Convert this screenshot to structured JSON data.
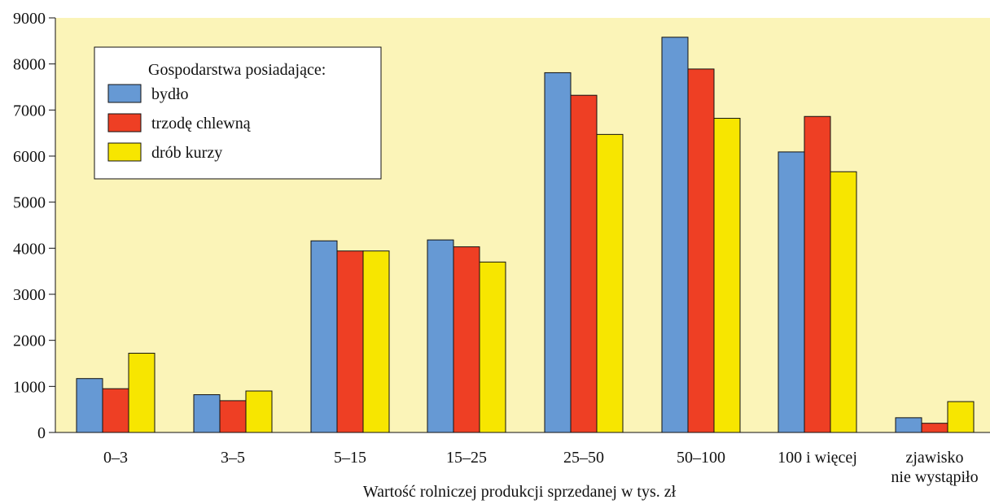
{
  "chart_data": {
    "type": "bar",
    "title": "",
    "xlabel": "Wartość rolniczej produkcji sprzedanej w  tys. zł",
    "ylabel": "",
    "ylim": [
      0,
      9000
    ],
    "yticks": [
      "0",
      "1000",
      "2000",
      "3000",
      "4000",
      "5000",
      "6000",
      "7000",
      "8000",
      "9000"
    ],
    "grid": false,
    "background_color": "#FBF4B8",
    "categories": [
      [
        "0–3"
      ],
      [
        "3–5"
      ],
      [
        "5–15"
      ],
      [
        "15–25"
      ],
      [
        "25–50"
      ],
      [
        "50–100"
      ],
      [
        "100 i więcej"
      ],
      [
        "zjawisko",
        "nie wystąpiło"
      ]
    ],
    "legend": {
      "title": "Gospodarstwa  posiadające:",
      "position": "top-left"
    },
    "series": [
      {
        "name": "bydło",
        "color": "#6699D4",
        "values": [
          1170,
          820,
          4160,
          4180,
          7810,
          8580,
          6090,
          320
        ]
      },
      {
        "name": "trzodę chlewną",
        "color": "#EE3F24",
        "values": [
          950,
          690,
          3940,
          4030,
          7320,
          7890,
          6860,
          200
        ]
      },
      {
        "name": "drób kurzy",
        "color": "#F7E600",
        "values": [
          1720,
          900,
          3940,
          3700,
          6470,
          6820,
          5660,
          670
        ]
      }
    ]
  }
}
